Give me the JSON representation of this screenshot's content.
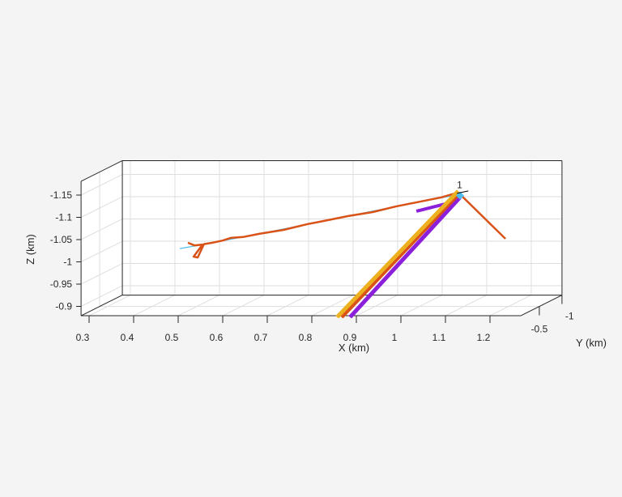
{
  "chart_data": {
    "type": "line3d",
    "title": "",
    "xlabel": "X (km)",
    "ylabel": "Y (km)",
    "zlabel": "Z (km)",
    "xlim": [
      0.282,
      1.269
    ],
    "ylim": [
      -1.0,
      -0.09
    ],
    "zlim": [
      -1.181,
      -0.879
    ],
    "z_direction": "reverse",
    "grid": true,
    "xticks": [
      0.3,
      0.4,
      0.5,
      0.6,
      0.7,
      0.8,
      0.9,
      1,
      1.1,
      1.2
    ],
    "xtick_labels": [
      "0.3",
      "0.4",
      "0.5",
      "0.6",
      "0.7",
      "0.8",
      "0.9",
      "1",
      "1.1",
      "1.2"
    ],
    "yticks": [
      -1,
      -0.5
    ],
    "ytick_labels": [
      "-1",
      "-0.5"
    ],
    "zticks": [
      -1.15,
      -1.1,
      -1.05,
      -1,
      -0.95,
      -0.9
    ],
    "ztick_labels": [
      "-1.15",
      "-1.1",
      "-1.05",
      "-1",
      "-0.95",
      "-0.9"
    ],
    "annotation": {
      "text": "1",
      "x": 1.09,
      "y": -0.5,
      "z": -1.145
    },
    "series": [
      {
        "color": "#4DBEEE",
        "width": 1.2,
        "points": [
          [
            0.462,
            -0.5,
            -1.009
          ],
          [
            0.535,
            -0.5,
            -1.022
          ],
          [
            0.64,
            -0.5,
            -1.042
          ],
          [
            0.785,
            -0.5,
            -1.071
          ],
          [
            0.949,
            -0.5,
            -1.104
          ],
          [
            1.091,
            -0.5,
            -1.131
          ]
        ]
      },
      {
        "color": "#D95319",
        "width": 2.5,
        "points": [
          [
            0.48,
            -0.5,
            -1.022
          ],
          [
            0.495,
            -0.5,
            -1.016
          ],
          [
            0.513,
            -0.5,
            -1.018
          ],
          [
            0.493,
            -0.5,
            -0.991
          ],
          [
            0.502,
            -0.5,
            -0.989
          ],
          [
            0.516,
            -0.5,
            -1.019
          ],
          [
            0.535,
            -0.5,
            -1.022
          ],
          [
            0.558,
            -0.5,
            -1.027
          ],
          [
            0.576,
            -0.5,
            -1.033
          ],
          [
            0.604,
            -0.5,
            -1.035
          ],
          [
            0.64,
            -0.5,
            -1.042
          ],
          [
            0.695,
            -0.5,
            -1.051
          ],
          [
            0.749,
            -0.5,
            -1.064
          ],
          [
            0.785,
            -0.5,
            -1.071
          ],
          [
            0.84,
            -0.5,
            -1.082
          ],
          [
            0.895,
            -0.5,
            -1.091
          ],
          [
            0.949,
            -0.5,
            -1.104
          ],
          [
            1.004,
            -0.5,
            -1.115
          ],
          [
            1.049,
            -0.5,
            -1.124
          ],
          [
            1.087,
            -0.5,
            -1.135
          ],
          [
            1.193,
            -0.5,
            -1.031
          ]
        ]
      },
      {
        "color": "#8C1FD9",
        "width": 4,
        "points": [
          [
            0.993,
            -0.5,
            -1.093
          ],
          [
            1.073,
            -0.5,
            -1.113
          ]
        ]
      },
      {
        "color": "#8C1FD9",
        "width": 5,
        "points": [
          [
            1.091,
            -0.5,
            -1.124
          ],
          [
            0.844,
            -0.5,
            -0.855
          ]
        ]
      },
      {
        "color": "#D95319",
        "width": 5,
        "points": [
          [
            1.087,
            -0.5,
            -1.131
          ],
          [
            0.825,
            -0.5,
            -0.855
          ]
        ]
      },
      {
        "color": "#EDB120",
        "width": 5,
        "points": [
          [
            1.087,
            -0.5,
            -1.138
          ],
          [
            0.815,
            -0.5,
            -0.855
          ]
        ]
      }
    ],
    "markers": [
      {
        "color": "#4DBEEE",
        "x": 1.091,
        "y": -0.5,
        "z": -1.128
      },
      {
        "color": "#000000",
        "x": 1.095,
        "y": -0.5,
        "z": -1.133,
        "shape": "star"
      }
    ]
  }
}
